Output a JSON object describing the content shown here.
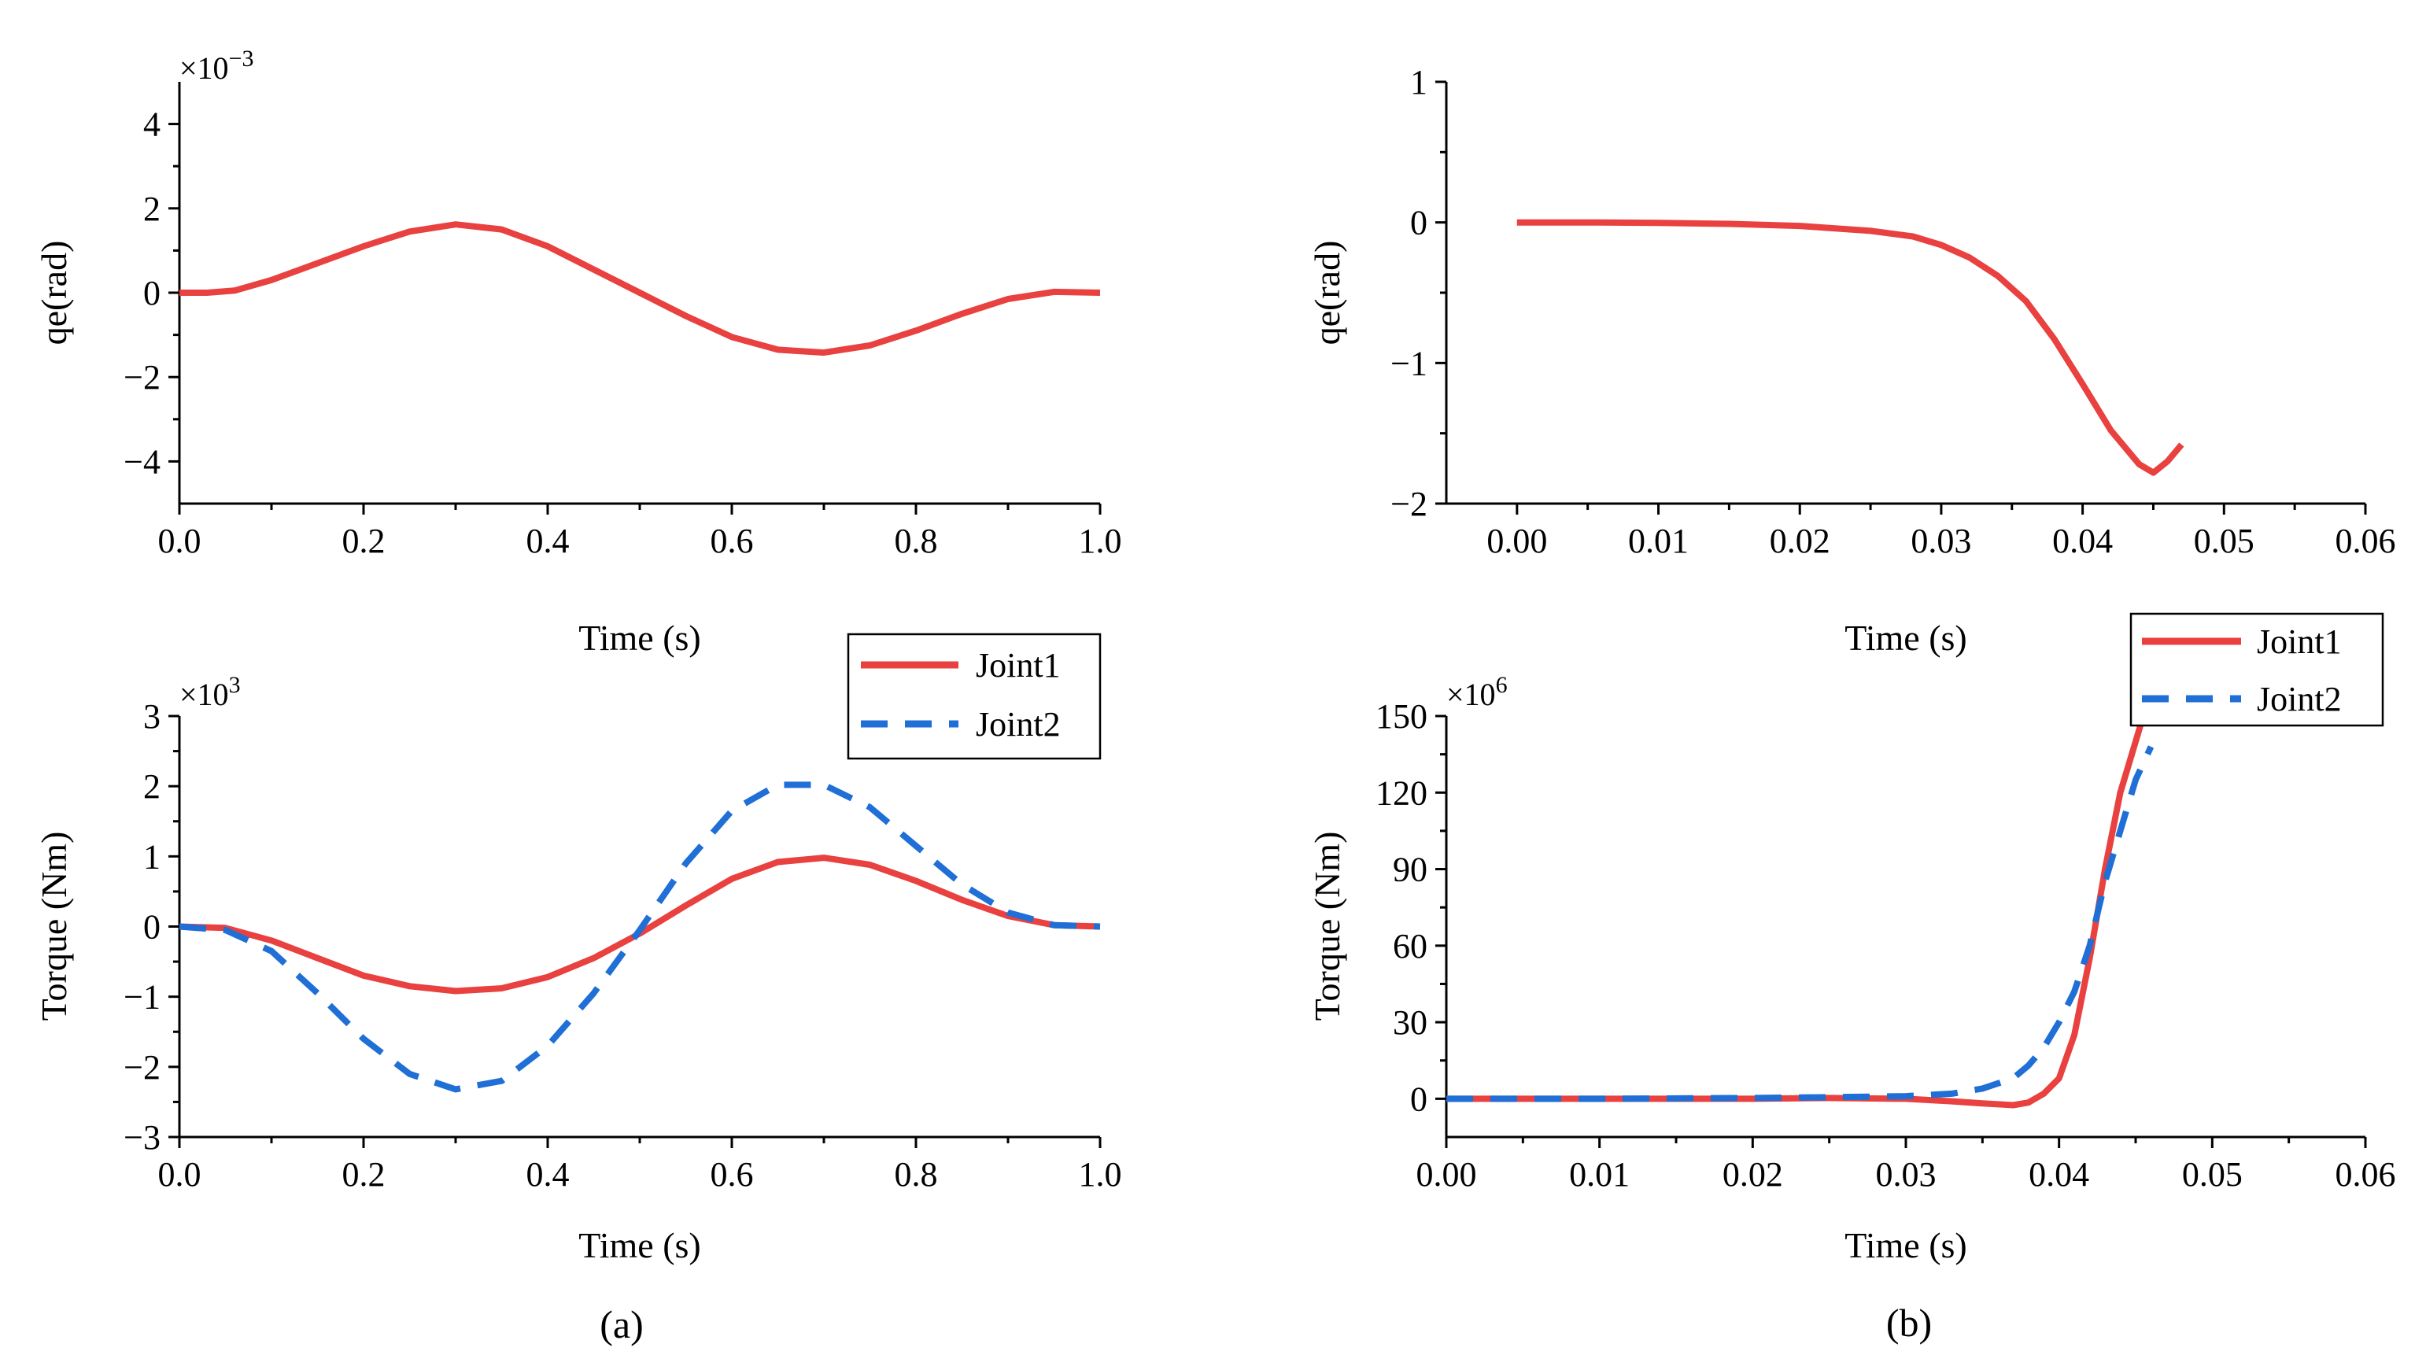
{
  "colors": {
    "joint1": "#e8413f",
    "joint2": "#1f6fd6",
    "axes": "#000000"
  },
  "legend": {
    "joint1_label": "Joint1",
    "joint2_label": "Joint2"
  },
  "captions": {
    "a": "(a)",
    "b": "(b)"
  },
  "chart_data": [
    {
      "type": "line",
      "ylabel": "qe(rad)",
      "xlabel": "Time (s)",
      "multiplier_base": "×10",
      "multiplier_exp": "−3",
      "xlim": [
        0,
        1.0
      ],
      "ylim": [
        -5,
        5
      ],
      "xticks": [
        0,
        0.2,
        0.4,
        0.6,
        0.8,
        1.0
      ],
      "xtick_labels": [
        "0.0",
        "0.2",
        "0.4",
        "0.6",
        "0.8",
        "1.0"
      ],
      "yticks": [
        -4,
        -2,
        0,
        2,
        4
      ],
      "ytick_labels": [
        "−4",
        "−2",
        "0",
        "2",
        "4"
      ],
      "legend": false,
      "series": [
        {
          "name": "Joint1",
          "style": "solid",
          "x": [
            0,
            0.03,
            0.06,
            0.1,
            0.15,
            0.2,
            0.25,
            0.3,
            0.35,
            0.4,
            0.45,
            0.5,
            0.55,
            0.6,
            0.65,
            0.7,
            0.75,
            0.8,
            0.85,
            0.9,
            0.95,
            1.0
          ],
          "y": [
            0,
            0,
            0.05,
            0.3,
            0.7,
            1.1,
            1.45,
            1.62,
            1.5,
            1.1,
            0.55,
            0,
            -0.55,
            -1.05,
            -1.35,
            -1.42,
            -1.25,
            -0.9,
            -0.5,
            -0.15,
            0.02,
            0
          ]
        }
      ]
    },
    {
      "type": "line",
      "ylabel": "qe(rad)",
      "xlabel": "Time (s)",
      "xlim": [
        -0.005,
        0.06
      ],
      "ylim": [
        -2,
        1
      ],
      "xticks": [
        0,
        0.01,
        0.02,
        0.03,
        0.04,
        0.05,
        0.06
      ],
      "xtick_labels": [
        "0.00",
        "0.01",
        "0.02",
        "0.03",
        "0.04",
        "0.05",
        "0.06"
      ],
      "yticks": [
        -2,
        -1,
        0,
        1
      ],
      "ytick_labels": [
        "−2",
        "−1",
        "0",
        "1"
      ],
      "legend": false,
      "series": [
        {
          "name": "Joint1",
          "style": "solid",
          "x": [
            0,
            0.005,
            0.01,
            0.015,
            0.02,
            0.025,
            0.028,
            0.03,
            0.032,
            0.034,
            0.036,
            0.038,
            0.04,
            0.042,
            0.044,
            0.045,
            0.046,
            0.047
          ],
          "y": [
            0,
            0,
            -0.003,
            -0.01,
            -0.025,
            -0.06,
            -0.1,
            -0.16,
            -0.25,
            -0.38,
            -0.56,
            -0.83,
            -1.15,
            -1.48,
            -1.72,
            -1.78,
            -1.7,
            -1.58
          ]
        }
      ]
    },
    {
      "type": "line",
      "ylabel": "Torque (Nm)",
      "xlabel": "Time (s)",
      "multiplier_base": "×10",
      "multiplier_exp": "3",
      "xlim": [
        0,
        1.0
      ],
      "ylim": [
        -3,
        3
      ],
      "xticks": [
        0,
        0.2,
        0.4,
        0.6,
        0.8,
        1.0
      ],
      "xtick_labels": [
        "0.0",
        "0.2",
        "0.4",
        "0.6",
        "0.8",
        "1.0"
      ],
      "yticks": [
        -3,
        -2,
        -1,
        0,
        1,
        2,
        3
      ],
      "ytick_labels": [
        "−3",
        "−2",
        "−1",
        "0",
        "1",
        "2",
        "3"
      ],
      "legend": true,
      "legend_position": "top-right",
      "series": [
        {
          "name": "Joint1",
          "style": "solid",
          "x": [
            0,
            0.05,
            0.1,
            0.15,
            0.2,
            0.25,
            0.3,
            0.35,
            0.4,
            0.45,
            0.5,
            0.55,
            0.6,
            0.65,
            0.7,
            0.75,
            0.8,
            0.85,
            0.9,
            0.95,
            1.0
          ],
          "y": [
            0,
            -0.02,
            -0.2,
            -0.45,
            -0.7,
            -0.85,
            -0.92,
            -0.88,
            -0.72,
            -0.45,
            -0.1,
            0.3,
            0.68,
            0.92,
            0.98,
            0.88,
            0.65,
            0.38,
            0.15,
            0.02,
            0
          ]
        },
        {
          "name": "Joint2",
          "style": "dashed",
          "x": [
            0,
            0.05,
            0.1,
            0.15,
            0.2,
            0.25,
            0.3,
            0.35,
            0.4,
            0.45,
            0.5,
            0.55,
            0.6,
            0.65,
            0.7,
            0.75,
            0.8,
            0.85,
            0.9,
            0.95,
            1.0
          ],
          "y": [
            0,
            -0.05,
            -0.35,
            -0.95,
            -1.6,
            -2.1,
            -2.32,
            -2.2,
            -1.7,
            -0.95,
            -0.05,
            0.9,
            1.65,
            2.02,
            2.02,
            1.7,
            1.15,
            0.6,
            0.2,
            0.02,
            0
          ]
        }
      ]
    },
    {
      "type": "line",
      "ylabel": "Torque (Nm)",
      "xlabel": "Time (s)",
      "multiplier_base": "×10",
      "multiplier_exp": "6",
      "xlim": [
        0,
        0.06
      ],
      "ylim": [
        -15,
        150
      ],
      "xticks": [
        0,
        0.01,
        0.02,
        0.03,
        0.04,
        0.05,
        0.06
      ],
      "xtick_labels": [
        "0.00",
        "0.01",
        "0.02",
        "0.03",
        "0.04",
        "0.05",
        "0.06"
      ],
      "yticks": [
        0,
        30,
        60,
        90,
        120,
        150
      ],
      "ytick_labels": [
        "0",
        "30",
        "60",
        "90",
        "120",
        "150"
      ],
      "legend": true,
      "legend_position": "top-right",
      "series": [
        {
          "name": "Joint1",
          "style": "solid",
          "x": [
            0,
            0.01,
            0.02,
            0.025,
            0.03,
            0.033,
            0.035,
            0.037,
            0.038,
            0.039,
            0.04,
            0.041,
            0.042,
            0.043,
            0.044,
            0.045,
            0.0455
          ],
          "y": [
            0,
            0,
            0,
            0.3,
            0,
            -1,
            -1.8,
            -2.5,
            -1.5,
            2,
            8,
            25,
            55,
            90,
            120,
            140,
            150
          ]
        },
        {
          "name": "Joint2",
          "style": "dashed",
          "x": [
            0,
            0.01,
            0.02,
            0.025,
            0.03,
            0.033,
            0.035,
            0.037,
            0.038,
            0.039,
            0.04,
            0.041,
            0.042,
            0.043,
            0.044,
            0.045,
            0.046
          ],
          "y": [
            0,
            0,
            0.3,
            0.6,
            1,
            2,
            4,
            8,
            13,
            20,
            30,
            42,
            60,
            85,
            105,
            125,
            138
          ]
        }
      ]
    }
  ]
}
